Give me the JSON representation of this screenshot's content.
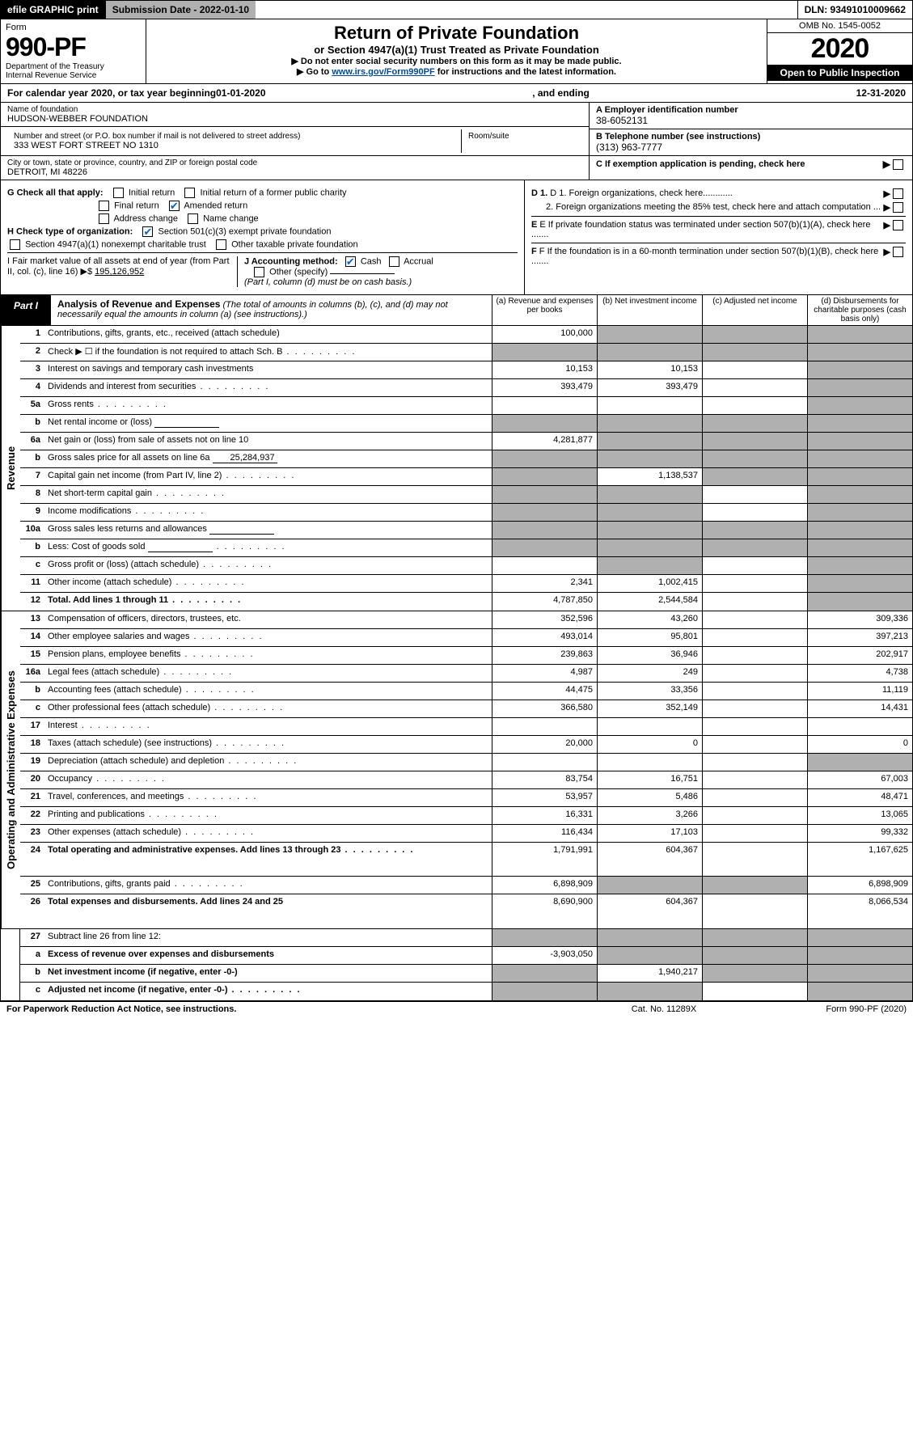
{
  "topbar": {
    "efile": "efile GRAPHIC print",
    "sub_label": "Submission Date - 2022-01-10",
    "dln": "DLN: 93491010009662"
  },
  "header": {
    "form_label": "Form",
    "form_num": "990-PF",
    "dept1": "Department of the Treasury",
    "dept2": "Internal Revenue Service",
    "title": "Return of Private Foundation",
    "subtitle": "or Section 4947(a)(1) Trust Treated as Private Foundation",
    "instr1": "▶ Do not enter social security numbers on this form as it may be made public.",
    "instr2_pre": "▶ Go to ",
    "instr2_link": "www.irs.gov/Form990PF",
    "instr2_post": " for instructions and the latest information.",
    "omb": "OMB No. 1545-0052",
    "year": "2020",
    "open": "Open to Public Inspection"
  },
  "cal": {
    "pre": "For calendar year 2020, or tax year beginning ",
    "begin": "01-01-2020",
    "mid": ", and ending ",
    "end": "12-31-2020"
  },
  "name": {
    "name_lbl": "Name of foundation",
    "name_val": "HUDSON-WEBBER FOUNDATION",
    "addr_lbl": "Number and street (or P.O. box number if mail is not delivered to street address)",
    "addr_val": "333 WEST FORT STREET NO 1310",
    "room_lbl": "Room/suite",
    "room_val": "",
    "city_lbl": "City or town, state or province, country, and ZIP or foreign postal code",
    "city_val": "DETROIT, MI  48226",
    "a_lbl": "A Employer identification number",
    "a_val": "38-6052131",
    "b_lbl": "B Telephone number (see instructions)",
    "b_val": "(313) 963-7777",
    "c_lbl": "C If exemption application is pending, check here"
  },
  "checks": {
    "g_lbl": "G Check all that apply:",
    "g_initial": "Initial return",
    "g_initial_former": "Initial return of a former public charity",
    "g_final": "Final return",
    "g_amended": "Amended return",
    "g_addr": "Address change",
    "g_name": "Name change",
    "h_lbl": "H Check type of organization:",
    "h_501c3": "Section 501(c)(3) exempt private foundation",
    "h_4947": "Section 4947(a)(1) nonexempt charitable trust",
    "h_other": "Other taxable private foundation",
    "i_lbl": "I Fair market value of all assets at end of year (from Part II, col. (c), line 16)",
    "i_prefix": "▶$",
    "i_val": "195,126,952",
    "j_lbl": "J Accounting method:",
    "j_cash": "Cash",
    "j_accrual": "Accrual",
    "j_other": "Other (specify)",
    "j_note": "(Part I, column (d) must be on cash basis.)",
    "d1": "D 1. Foreign organizations, check here............",
    "d2": "2. Foreign organizations meeting the 85% test, check here and attach computation ...",
    "e": "E If private foundation status was terminated under section 507(b)(1)(A), check here .......",
    "f": "F If the foundation is in a 60-month termination under section 507(b)(1)(B), check here ......."
  },
  "part1": {
    "tag": "Part I",
    "title": "Analysis of Revenue and Expenses",
    "note": "(The total of amounts in columns (b), (c), and (d) may not necessarily equal the amounts in column (a) (see instructions).)",
    "col_a": "(a) Revenue and expenses per books",
    "col_b": "(b) Net investment income",
    "col_c": "(c) Adjusted net income",
    "col_d": "(d) Disbursements for charitable purposes (cash basis only)"
  },
  "sidelabels": {
    "revenue": "Revenue",
    "expenses": "Operating and Administrative Expenses"
  },
  "rows": [
    {
      "n": "1",
      "lbl": "Contributions, gifts, grants, etc., received (attach schedule)",
      "a": "100,000",
      "b": "",
      "c": "",
      "d": "",
      "grey_bcd": true
    },
    {
      "n": "2",
      "lbl": "Check ▶ ☐ if the foundation is not required to attach Sch. B",
      "dots": true,
      "nocells": true
    },
    {
      "n": "3",
      "lbl": "Interest on savings and temporary cash investments",
      "a": "10,153",
      "b": "10,153",
      "c": "",
      "d": "",
      "grey_d": true
    },
    {
      "n": "4",
      "lbl": "Dividends and interest from securities",
      "dots": true,
      "a": "393,479",
      "b": "393,479",
      "c": "",
      "d": "",
      "grey_d": true
    },
    {
      "n": "5a",
      "lbl": "Gross rents",
      "dots": true,
      "a": "",
      "b": "",
      "c": "",
      "d": "",
      "grey_d": true
    },
    {
      "n": "b",
      "lbl": "Net rental income or (loss)",
      "blank_after": true,
      "nocells_bcd": true,
      "grey_all": true
    },
    {
      "n": "6a",
      "lbl": "Net gain or (loss) from sale of assets not on line 10",
      "a": "4,281,877",
      "b": "",
      "c": "",
      "d": "",
      "grey_bcd": true
    },
    {
      "n": "b",
      "lbl": "Gross sales price for all assets on line 6a",
      "blank_val": "25,284,937",
      "nocells": true,
      "grey_all": true
    },
    {
      "n": "7",
      "lbl": "Capital gain net income (from Part IV, line 2)",
      "dots": true,
      "a": "",
      "b": "1,138,537",
      "c": "",
      "d": "",
      "grey_a": true,
      "grey_cd": true
    },
    {
      "n": "8",
      "lbl": "Net short-term capital gain",
      "dots": true,
      "a": "",
      "b": "",
      "c": "",
      "d": "",
      "grey_ab": true,
      "grey_d": true
    },
    {
      "n": "9",
      "lbl": "Income modifications",
      "dots": true,
      "a": "",
      "b": "",
      "c": "",
      "d": "",
      "grey_ab": true,
      "grey_d": true
    },
    {
      "n": "10a",
      "lbl": "Gross sales less returns and allowances",
      "blank_after": true,
      "nocells": true,
      "grey_all": true
    },
    {
      "n": "b",
      "lbl": "Less: Cost of goods sold",
      "dots": true,
      "blank_after": true,
      "nocells": true,
      "grey_all": true
    },
    {
      "n": "c",
      "lbl": "Gross profit or (loss) (attach schedule)",
      "dots": true,
      "a": "",
      "b": "",
      "c": "",
      "d": "",
      "grey_b": true,
      "grey_d": true
    },
    {
      "n": "11",
      "lbl": "Other income (attach schedule)",
      "dots": true,
      "a": "2,341",
      "b": "1,002,415",
      "c": "",
      "d": "",
      "grey_d": true
    },
    {
      "n": "12",
      "lbl": "Total. Add lines 1 through 11",
      "dots": true,
      "bold": true,
      "a": "4,787,850",
      "b": "2,544,584",
      "c": "",
      "d": "",
      "grey_d": true
    }
  ],
  "exp_rows": [
    {
      "n": "13",
      "lbl": "Compensation of officers, directors, trustees, etc.",
      "a": "352,596",
      "b": "43,260",
      "c": "",
      "d": "309,336"
    },
    {
      "n": "14",
      "lbl": "Other employee salaries and wages",
      "dots": true,
      "a": "493,014",
      "b": "95,801",
      "c": "",
      "d": "397,213"
    },
    {
      "n": "15",
      "lbl": "Pension plans, employee benefits",
      "dots": true,
      "a": "239,863",
      "b": "36,946",
      "c": "",
      "d": "202,917"
    },
    {
      "n": "16a",
      "lbl": "Legal fees (attach schedule)",
      "dots": true,
      "a": "4,987",
      "b": "249",
      "c": "",
      "d": "4,738"
    },
    {
      "n": "b",
      "lbl": "Accounting fees (attach schedule)",
      "dots": true,
      "a": "44,475",
      "b": "33,356",
      "c": "",
      "d": "11,119"
    },
    {
      "n": "c",
      "lbl": "Other professional fees (attach schedule)",
      "dots": true,
      "a": "366,580",
      "b": "352,149",
      "c": "",
      "d": "14,431"
    },
    {
      "n": "17",
      "lbl": "Interest",
      "dots": true,
      "a": "",
      "b": "",
      "c": "",
      "d": ""
    },
    {
      "n": "18",
      "lbl": "Taxes (attach schedule) (see instructions)",
      "dots": true,
      "a": "20,000",
      "b": "0",
      "c": "",
      "d": "0"
    },
    {
      "n": "19",
      "lbl": "Depreciation (attach schedule) and depletion",
      "dots": true,
      "a": "",
      "b": "",
      "c": "",
      "d": "",
      "grey_d": true
    },
    {
      "n": "20",
      "lbl": "Occupancy",
      "dots": true,
      "a": "83,754",
      "b": "16,751",
      "c": "",
      "d": "67,003"
    },
    {
      "n": "21",
      "lbl": "Travel, conferences, and meetings",
      "dots": true,
      "a": "53,957",
      "b": "5,486",
      "c": "",
      "d": "48,471"
    },
    {
      "n": "22",
      "lbl": "Printing and publications",
      "dots": true,
      "a": "16,331",
      "b": "3,266",
      "c": "",
      "d": "13,065"
    },
    {
      "n": "23",
      "lbl": "Other expenses (attach schedule)",
      "dots": true,
      "a": "116,434",
      "b": "17,103",
      "c": "",
      "d": "99,332"
    },
    {
      "n": "24",
      "lbl": "Total operating and administrative expenses. Add lines 13 through 23",
      "dots": true,
      "bold": true,
      "a": "1,791,991",
      "b": "604,367",
      "c": "",
      "d": "1,167,625",
      "tall": true
    },
    {
      "n": "25",
      "lbl": "Contributions, gifts, grants paid",
      "dots": true,
      "a": "6,898,909",
      "b": "",
      "c": "",
      "d": "6,898,909",
      "grey_bc": true
    },
    {
      "n": "26",
      "lbl": "Total expenses and disbursements. Add lines 24 and 25",
      "bold": true,
      "a": "8,690,900",
      "b": "604,367",
      "c": "",
      "d": "8,066,534",
      "tall": true
    }
  ],
  "sub_rows": [
    {
      "n": "27",
      "lbl": "Subtract line 26 from line 12:",
      "grey_all": true
    },
    {
      "n": "a",
      "lbl": "Excess of revenue over expenses and disbursements",
      "bold": true,
      "a": "-3,903,050",
      "grey_bcd": true
    },
    {
      "n": "b",
      "lbl": "Net investment income (if negative, enter -0-)",
      "bold": true,
      "b": "1,940,217",
      "grey_a": true,
      "grey_cd": true
    },
    {
      "n": "c",
      "lbl": "Adjusted net income (if negative, enter -0-)",
      "bold": true,
      "dots": true,
      "grey_ab": true,
      "grey_d": true
    }
  ],
  "footer": {
    "left": "For Paperwork Reduction Act Notice, see instructions.",
    "mid": "Cat. No. 11289X",
    "right": "Form 990-PF (2020)"
  }
}
